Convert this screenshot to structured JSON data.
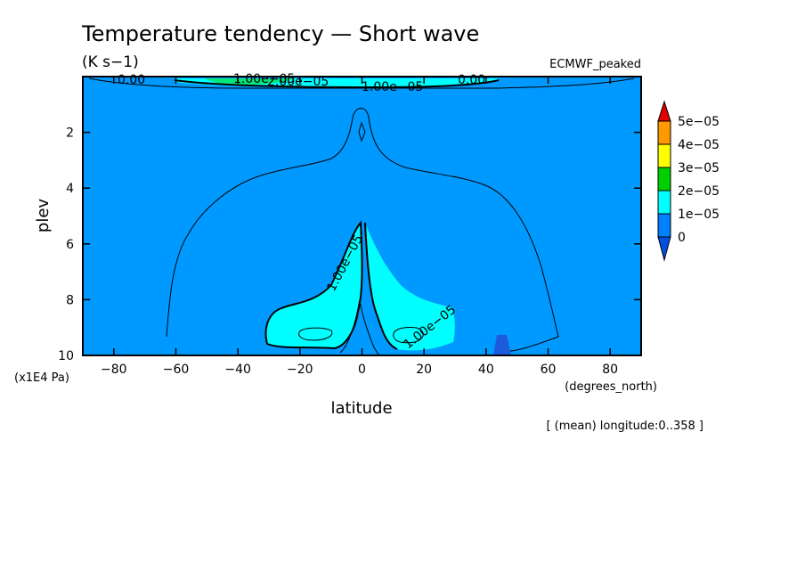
{
  "chart_data": {
    "type": "contour",
    "title": "Temperature tendency — Short wave",
    "units": "(K s−1)",
    "dataset": "ECMWF_peaked",
    "xlabel": "latitude",
    "ylabel": "plev",
    "x_unit_label": "(degrees_north)",
    "y_unit_label": "(x1E4 Pa)",
    "subtitle": "[ (mean) longitude:0..358 ]",
    "xlim": [
      -90,
      90
    ],
    "ylim": [
      10,
      0
    ],
    "x_ticks": [
      -80,
      -60,
      -40,
      -20,
      0,
      20,
      40,
      60,
      80
    ],
    "x_tick_labels": [
      "−80",
      "−60",
      "−40",
      "−20",
      "0",
      "20",
      "40",
      "60",
      "80"
    ],
    "y_ticks": [
      2,
      4,
      6,
      8,
      10
    ],
    "y_tick_labels": [
      "2",
      "4",
      "6",
      "8",
      "10"
    ],
    "colorbar": {
      "levels": [
        0,
        1e-05,
        2e-05,
        3e-05,
        4e-05,
        5e-05
      ],
      "labels": [
        "0",
        "1e−05",
        "2e−05",
        "3e−05",
        "4e−05",
        "5e−05"
      ],
      "colors": [
        "#0080ff",
        "#00ffff",
        "#00d000",
        "#ffff00",
        "#ff9900",
        "#e00000"
      ],
      "below_color": "#0050e0"
    },
    "contour_labels": {
      "zero_left": "0.00",
      "zero_right": "0.00",
      "top_a": "1.00e−05",
      "top_b": "2.00e−05",
      "top_c": "1.00e−05",
      "mid_left": "1.00e−05",
      "mid_right": "1.00e−05"
    },
    "field_colors": {
      "background": "#0099ff",
      "band_1e5": "#00ffff",
      "band_2e5": "#00e87a",
      "negative": "#1e5adc"
    }
  }
}
